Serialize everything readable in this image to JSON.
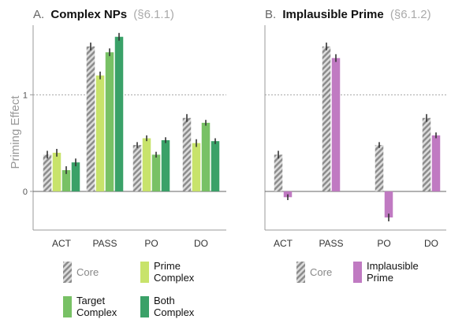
{
  "y_axis": {
    "label": "Priming Effect",
    "ticks": [
      0,
      1
    ],
    "ylim": [
      -0.4,
      1.72
    ]
  },
  "colors": {
    "core_stripe_dark": "#8c8c8c",
    "core_stripe_light": "#dcdcdc",
    "prime_complex": "#c8e36b",
    "target_complex": "#78c165",
    "both_complex": "#3aa168",
    "implausible_prime": "#c07ac2",
    "errorbar": "#333333",
    "axis": "#999999",
    "refline": "#999999"
  },
  "chart_data": [
    {
      "type": "bar",
      "title_letter": "A.",
      "title_name": "Complex NPs",
      "title_ref": "(§6.1.1)",
      "categories": [
        "ACT",
        "PASS",
        "PO",
        "DO"
      ],
      "reference_line": 1,
      "series": [
        {
          "name": "Core",
          "key": "core",
          "values": [
            0.38,
            1.5,
            0.48,
            0.76
          ],
          "errors": [
            0.04,
            0.04,
            0.03,
            0.04
          ]
        },
        {
          "name": "Prime Complex",
          "key": "prime_complex",
          "legend_lines": [
            "Prime",
            "Complex"
          ],
          "values": [
            0.4,
            1.2,
            0.55,
            0.5
          ],
          "errors": [
            0.04,
            0.04,
            0.03,
            0.04
          ]
        },
        {
          "name": "Target Complex",
          "key": "target_complex",
          "legend_lines": [
            "Target",
            "Complex"
          ],
          "values": [
            0.22,
            1.44,
            0.38,
            0.71
          ],
          "errors": [
            0.04,
            0.04,
            0.03,
            0.03
          ]
        },
        {
          "name": "Both Complex",
          "key": "both_complex",
          "legend_lines": [
            "Both",
            "Complex"
          ],
          "values": [
            0.3,
            1.6,
            0.53,
            0.52
          ],
          "errors": [
            0.04,
            0.04,
            0.03,
            0.03
          ]
        }
      ]
    },
    {
      "type": "bar",
      "title_letter": "B.",
      "title_name": "Implausible Prime",
      "title_ref": "(§6.1.2)",
      "categories": [
        "ACT",
        "PASS",
        "PO",
        "DO"
      ],
      "reference_line": 1,
      "series": [
        {
          "name": "Core",
          "key": "core",
          "values": [
            0.38,
            1.5,
            0.48,
            0.76
          ],
          "errors": [
            0.04,
            0.04,
            0.03,
            0.04
          ]
        },
        {
          "name": "Implausible Prime",
          "key": "implausible_prime",
          "legend_lines": [
            "Implausible",
            "Prime"
          ],
          "values": [
            -0.06,
            1.38,
            -0.27,
            0.58
          ],
          "errors": [
            0.03,
            0.04,
            0.04,
            0.03
          ]
        }
      ]
    }
  ],
  "legends": [
    {
      "items": [
        {
          "key": "core",
          "lines": [
            "Core"
          ],
          "text_color": "#888888"
        },
        {
          "key": "prime_complex",
          "lines": [
            "Prime",
            "Complex"
          ],
          "text_color": "#111111"
        },
        {
          "key": "target_complex",
          "lines": [
            "Target",
            "Complex"
          ],
          "text_color": "#111111"
        },
        {
          "key": "both_complex",
          "lines": [
            "Both",
            "Complex"
          ],
          "text_color": "#111111"
        }
      ]
    },
    {
      "items": [
        {
          "key": "core",
          "lines": [
            "Core"
          ],
          "text_color": "#888888"
        },
        {
          "key": "implausible_prime",
          "lines": [
            "Implausible",
            "Prime"
          ],
          "text_color": "#111111"
        }
      ]
    }
  ]
}
